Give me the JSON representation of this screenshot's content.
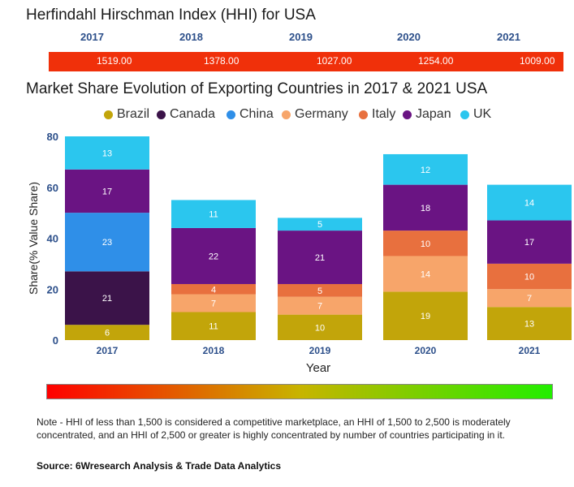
{
  "hhi": {
    "title": "Herfindahl Hirschman Index (HHI) for USA",
    "years": [
      "2017",
      "2018",
      "2019",
      "2020",
      "2021"
    ],
    "values": [
      "1519.00",
      "1378.00",
      "1027.00",
      "1254.00",
      "1009.00"
    ]
  },
  "chart_title": "Market Share Evolution of Exporting Countries in 2017 & 2021 USA",
  "colors": {
    "Brazil": "#c2a50a",
    "Canada": "#3b1349",
    "China": "#2f8fe8",
    "Germany": "#f7a56a",
    "Italy": "#e8703e",
    "Japan": "#6a1483",
    "UK": "#2bc6ee"
  },
  "chart_data": {
    "type": "bar",
    "stacked": true,
    "title": "Market Share Evolution of Exporting Countries in 2017 & 2021 USA",
    "xlabel": "Year",
    "ylabel": "Share(% Value Share)",
    "ylim": [
      0,
      80
    ],
    "yticks": [
      "0",
      "20",
      "40",
      "60",
      "80"
    ],
    "categories": [
      "2017",
      "2018",
      "2019",
      "2020",
      "2021"
    ],
    "legend_position": "top",
    "series": [
      {
        "name": "Brazil",
        "values": [
          6,
          11,
          10,
          19,
          13
        ]
      },
      {
        "name": "Canada",
        "values": [
          21,
          0,
          0,
          0,
          0
        ]
      },
      {
        "name": "China",
        "values": [
          23,
          0,
          0,
          0,
          0
        ]
      },
      {
        "name": "Germany",
        "values": [
          0,
          7,
          7,
          14,
          7
        ]
      },
      {
        "name": "Italy",
        "values": [
          0,
          4,
          5,
          10,
          10
        ]
      },
      {
        "name": "Japan",
        "values": [
          17,
          22,
          21,
          18,
          17
        ]
      },
      {
        "name": "UK",
        "values": [
          13,
          11,
          5,
          12,
          14
        ]
      }
    ]
  },
  "note": "Note - HHI of less than 1,500 is considered a competitive marketplace, an HHI of 1,500 to 2,500 is moderately concentrated, and an HHI of 2,500 or greater is highly concentrated by number of countries participating in it.",
  "source": "Source: 6Wresearch Analysis & Trade Data Analytics"
}
